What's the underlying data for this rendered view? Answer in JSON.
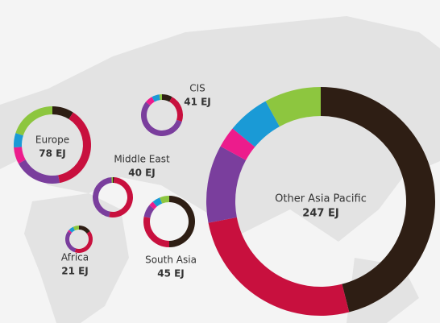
{
  "chart_data": [
    {
      "type": "donut",
      "title": "Europe",
      "subtitle": "78 EJ",
      "colors": [
        "#2e1e14",
        "#c8103e",
        "#7a3e9d",
        "#ec1c8c",
        "#1a9ad6",
        "#8dc63f"
      ],
      "values": [
        9,
        38,
        20,
        7,
        6,
        20
      ]
    },
    {
      "type": "donut",
      "title": "CIS",
      "subtitle": "41 EJ",
      "colors": [
        "#2e1e14",
        "#c8103e",
        "#7a3e9d",
        "#ec1c8c",
        "#1a9ad6",
        "#8dc63f"
      ],
      "values": [
        8,
        22,
        56,
        6,
        6,
        2
      ]
    },
    {
      "type": "donut",
      "title": "Middle East",
      "subtitle": "40 EJ",
      "colors": [
        "#2e1e14",
        "#c8103e",
        "#7a3e9d",
        "#ec1c8c",
        "#1a9ad6",
        "#8dc63f"
      ],
      "values": [
        1,
        52,
        46,
        0,
        0,
        1
      ]
    },
    {
      "type": "donut",
      "title": "South Asia",
      "subtitle": "45 EJ",
      "colors": [
        "#2e1e14",
        "#c8103e",
        "#7a3e9d",
        "#ec1c8c",
        "#1a9ad6",
        "#8dc63f"
      ],
      "values": [
        50,
        28,
        8,
        3,
        5,
        6
      ]
    },
    {
      "type": "donut",
      "title": "Africa",
      "subtitle": "21 EJ",
      "colors": [
        "#2e1e14",
        "#c8103e",
        "#7a3e9d",
        "#ec1c8c",
        "#1a9ad6",
        "#8dc63f"
      ],
      "values": [
        15,
        40,
        30,
        2,
        6,
        7
      ]
    },
    {
      "type": "donut",
      "title": "Other Asia Pacific",
      "subtitle": "247 EJ",
      "colors": [
        "#2e1e14",
        "#c8103e",
        "#7a3e9d",
        "#ec1c8c",
        "#1a9ad6",
        "#8dc63f"
      ],
      "values": [
        46,
        26,
        11,
        3,
        6,
        8
      ]
    }
  ]
}
